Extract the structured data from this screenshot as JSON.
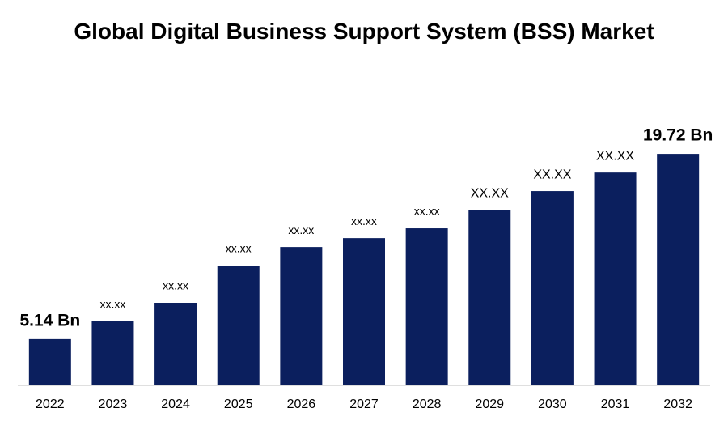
{
  "chart_data": {
    "type": "bar",
    "title": "Global Digital Business Support System (BSS) Market",
    "categories": [
      "2022",
      "2023",
      "2024",
      "2025",
      "2026",
      "2027",
      "2028",
      "2029",
      "2030",
      "2031",
      "2032"
    ],
    "values": [
      5.14,
      6.54,
      8.0,
      10.93,
      12.39,
      13.09,
      13.86,
      15.32,
      16.79,
      18.25,
      19.72
    ],
    "value_labels": [
      "5.14 Bn",
      "xx.xx",
      "xx.xx",
      "xx.xx",
      "xx.xx",
      "xx.xx",
      "xx.xx",
      "XX.XX",
      "XX.XX",
      "XX.XX",
      "19.72 Bn"
    ],
    "color": "#0b1f5e",
    "ylim": [
      1.5,
      21.0
    ]
  }
}
